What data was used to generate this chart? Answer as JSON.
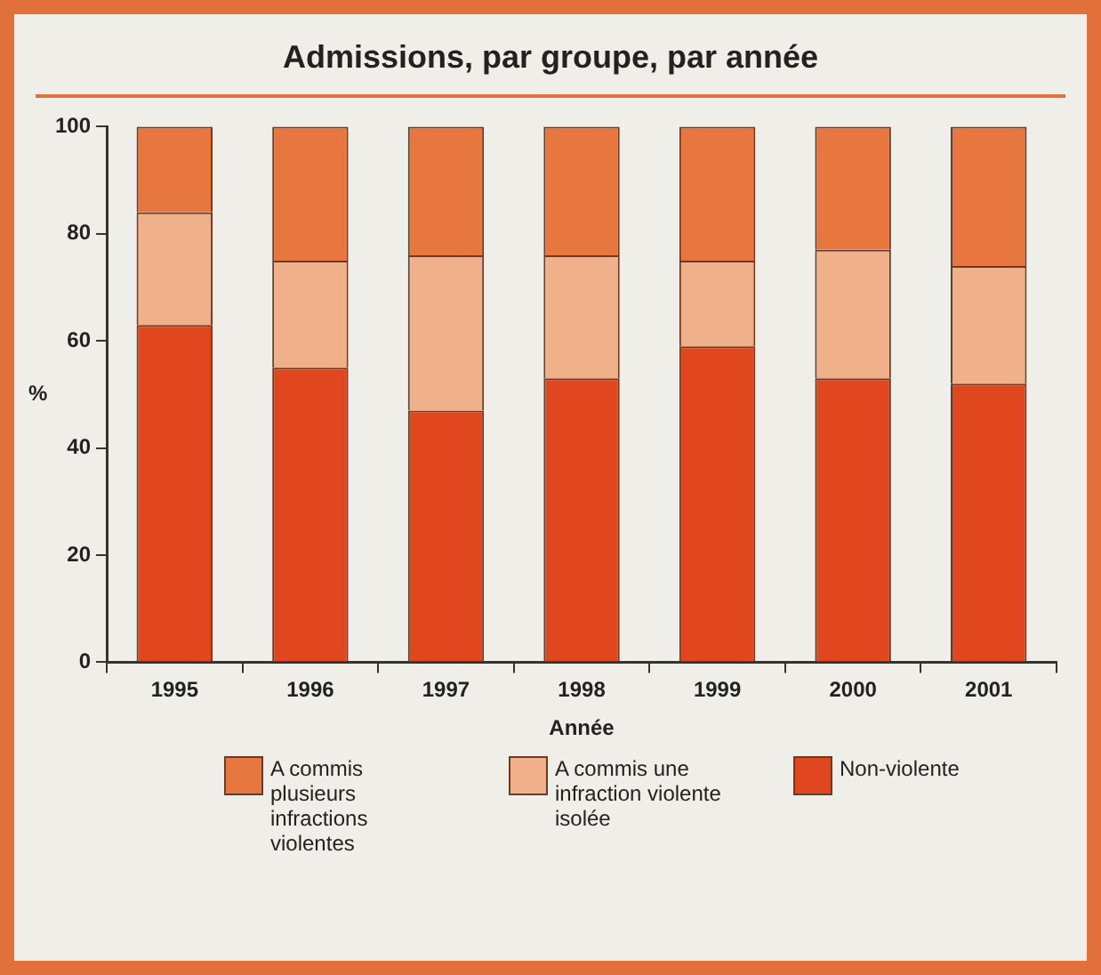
{
  "chart_data": {
    "type": "bar",
    "title": "Admissions, par groupe, par année",
    "xlabel": "Année",
    "ylabel": "%",
    "categories": [
      "1995",
      "1996",
      "1997",
      "1998",
      "1999",
      "2000",
      "2001"
    ],
    "stacked": true,
    "ylim": [
      0,
      100
    ],
    "yticks": [
      0,
      20,
      40,
      60,
      80,
      100
    ],
    "grid": false,
    "legend": "bottom",
    "series": [
      {
        "name": "Non-violente",
        "color": "#e0471f",
        "values": [
          63,
          55,
          47,
          53,
          59,
          53,
          52
        ]
      },
      {
        "name": "A commis une infraction violente isolée",
        "color": "#f0b08a",
        "values": [
          21,
          20,
          29,
          23,
          16,
          24,
          22
        ]
      },
      {
        "name": "A commis plusieurs infractions violentes",
        "color": "#e8763f",
        "values": [
          16,
          25,
          24,
          24,
          25,
          23,
          26
        ]
      }
    ]
  }
}
